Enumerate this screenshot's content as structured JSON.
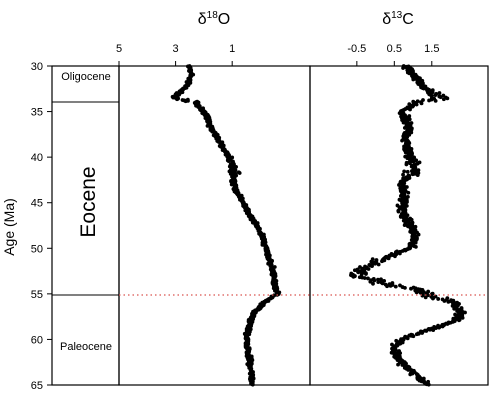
{
  "chart_data": {
    "type": "scatter",
    "y_axis": {
      "label": "Age (Ma)",
      "range": [
        30,
        65
      ],
      "ticks": [
        30,
        35,
        40,
        45,
        50,
        55,
        60,
        65
      ],
      "inverted": true
    },
    "epochs": [
      {
        "label": "Oligocene",
        "from": 30,
        "to": 33.9
      },
      {
        "label": "Eocene",
        "from": 33.9,
        "to": 55
      },
      {
        "label": "Paleocene",
        "from": 55,
        "to": 65
      }
    ],
    "boundary_line": {
      "age": 55,
      "color": "#d9534f",
      "style": "dotted"
    },
    "panels": [
      {
        "title_main": "δ",
        "title_sup": "18",
        "title_tail": "O",
        "x_range": [
          5,
          -1.75
        ],
        "x_ticks": [
          5,
          3,
          1
        ],
        "profile": [
          [
            30,
            2.5
          ],
          [
            31,
            2.45
          ],
          [
            32,
            2.55
          ],
          [
            33,
            2.9
          ],
          [
            33.5,
            3.0
          ],
          [
            34,
            2.3
          ],
          [
            35,
            2.0
          ],
          [
            36,
            1.85
          ],
          [
            37,
            1.7
          ],
          [
            38,
            1.5
          ],
          [
            39,
            1.3
          ],
          [
            40,
            1.1
          ],
          [
            41,
            1.0
          ],
          [
            42,
            0.95
          ],
          [
            43,
            0.95
          ],
          [
            44,
            0.8
          ],
          [
            45,
            0.6
          ],
          [
            46,
            0.45
          ],
          [
            47,
            0.25
          ],
          [
            48,
            0.05
          ],
          [
            49,
            -0.1
          ],
          [
            50,
            -0.2
          ],
          [
            51,
            -0.3
          ],
          [
            52,
            -0.4
          ],
          [
            53,
            -0.45
          ],
          [
            54,
            -0.5
          ],
          [
            55,
            -0.6
          ],
          [
            56,
            -0.1
          ],
          [
            57,
            0.2
          ],
          [
            58,
            0.35
          ],
          [
            59,
            0.45
          ],
          [
            60,
            0.5
          ],
          [
            61,
            0.45
          ],
          [
            62,
            0.4
          ],
          [
            63,
            0.35
          ],
          [
            64,
            0.3
          ],
          [
            65,
            0.3
          ]
        ]
      },
      {
        "title_main": "δ",
        "title_sup": "13",
        "title_tail": "C",
        "x_range": [
          -1.75,
          3.0
        ],
        "x_ticks": [
          -0.5,
          0.5,
          1.5
        ],
        "profile": [
          [
            30,
            0.8
          ],
          [
            31,
            1.0
          ],
          [
            32,
            1.2
          ],
          [
            33,
            1.5
          ],
          [
            33.5,
            1.7
          ],
          [
            34,
            1.1
          ],
          [
            35,
            0.7
          ],
          [
            36,
            0.8
          ],
          [
            37,
            0.9
          ],
          [
            38,
            0.8
          ],
          [
            39,
            0.85
          ],
          [
            40,
            0.9
          ],
          [
            41,
            1.1
          ],
          [
            42,
            0.9
          ],
          [
            43,
            0.7
          ],
          [
            44,
            0.75
          ],
          [
            45,
            0.75
          ],
          [
            46,
            0.7
          ],
          [
            47,
            0.85
          ],
          [
            48,
            1.0
          ],
          [
            49,
            1.05
          ],
          [
            50,
            0.9
          ],
          [
            51,
            0.3
          ],
          [
            52,
            -0.2
          ],
          [
            53,
            -0.5
          ],
          [
            53.5,
            0.0
          ],
          [
            54,
            0.3
          ],
          [
            54.5,
            1.1
          ],
          [
            55,
            1.3
          ],
          [
            56,
            2.1
          ],
          [
            57,
            2.3
          ],
          [
            58,
            2.1
          ],
          [
            59,
            1.4
          ],
          [
            60,
            0.7
          ],
          [
            61,
            0.5
          ],
          [
            62,
            0.6
          ],
          [
            63,
            0.8
          ],
          [
            64,
            1.1
          ],
          [
            65,
            1.4
          ]
        ]
      }
    ]
  }
}
